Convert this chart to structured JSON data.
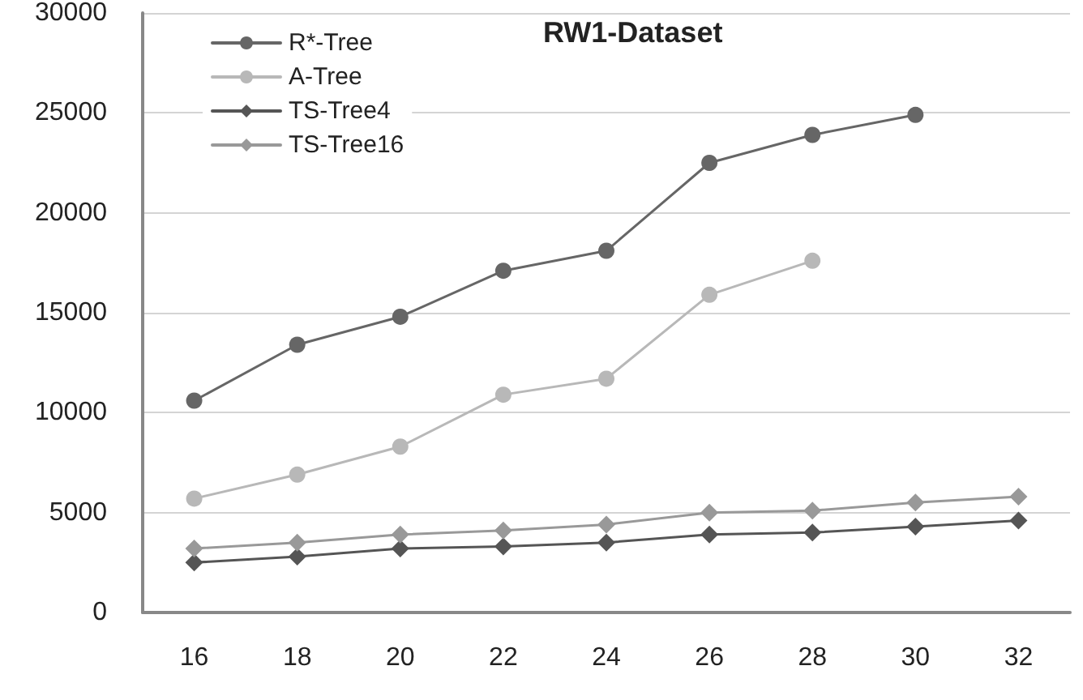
{
  "chart_data": {
    "type": "line",
    "title": "RW1-Dataset",
    "categories": [
      "16",
      "18",
      "20",
      "22",
      "24",
      "26",
      "28",
      "30",
      "32"
    ],
    "series": [
      {
        "name": "R*-Tree",
        "color": "#666666",
        "marker": "circle",
        "values": [
          10600,
          13400,
          14800,
          17100,
          18100,
          22500,
          23900,
          24900,
          null
        ]
      },
      {
        "name": "A-Tree",
        "color": "#b8b8b8",
        "marker": "circle",
        "values": [
          5700,
          6900,
          8300,
          10900,
          11700,
          15900,
          17600,
          null,
          null
        ]
      },
      {
        "name": "TS-Tree4",
        "color": "#555555",
        "marker": "diamond",
        "values": [
          2500,
          2800,
          3200,
          3300,
          3500,
          3900,
          4000,
          4300,
          4600
        ]
      },
      {
        "name": "TS-Tree16",
        "color": "#999999",
        "marker": "diamond",
        "values": [
          3200,
          3500,
          3900,
          4100,
          4400,
          5000,
          5100,
          5500,
          5800
        ]
      }
    ],
    "ylim": [
      0,
      30000
    ],
    "yticks": [
      0,
      5000,
      10000,
      15000,
      20000,
      25000,
      30000
    ],
    "grid": "y",
    "legend": "top left"
  }
}
